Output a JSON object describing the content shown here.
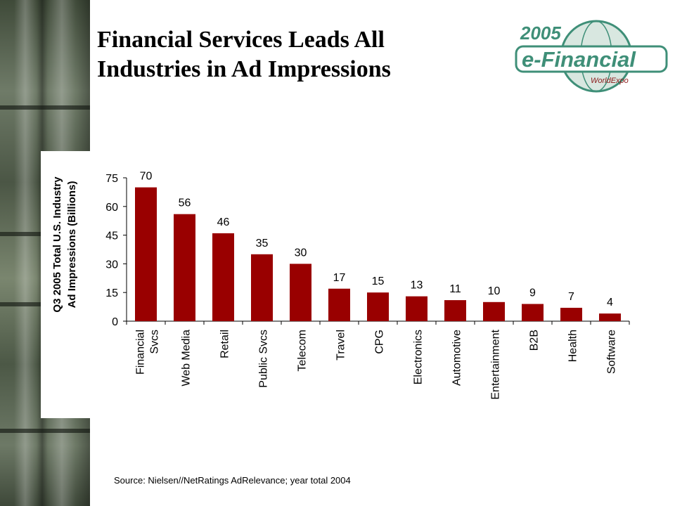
{
  "slide": {
    "title_line1": "Financial Services Leads All",
    "title_line2": "Industries in Ad Impressions",
    "source": "Source: Nielsen//NetRatings AdRelevance; year total 2004"
  },
  "logo": {
    "year": "2005",
    "name": "e-Financial",
    "sub": "WorldExpo"
  },
  "colors": {
    "bar": "#990000",
    "logo_green": "#3f8f78"
  },
  "chart_data": {
    "type": "bar",
    "title": "",
    "ylabel_line1": "Q3 2005 Total U.S. Industry",
    "ylabel_line2": "Ad Impressions (Billions)",
    "xlabel": "",
    "ylim": [
      0,
      75
    ],
    "yticks": [
      0,
      15,
      30,
      45,
      60,
      75
    ],
    "grid": false,
    "categories": [
      [
        "Financial",
        "Svcs"
      ],
      [
        "Web Media"
      ],
      [
        "Retail"
      ],
      [
        "Public Svcs"
      ],
      [
        "Telecom"
      ],
      [
        "Travel"
      ],
      [
        "CPG"
      ],
      [
        "Electronics"
      ],
      [
        "Automotive"
      ],
      [
        "Entertainment"
      ],
      [
        "B2B"
      ],
      [
        "Health"
      ],
      [
        "Software"
      ]
    ],
    "values": [
      70,
      56,
      46,
      35,
      30,
      17,
      15,
      13,
      11,
      10,
      9,
      7,
      4
    ]
  }
}
